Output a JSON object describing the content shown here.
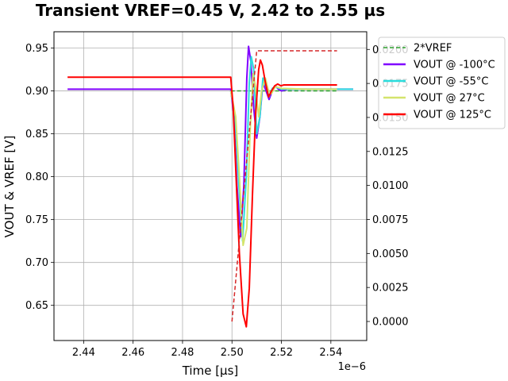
{
  "chart_data": {
    "type": "line",
    "title": "Transient VREF=0.45 V, 2.42 to 2.55 µs",
    "xlabel": "Time [µs]",
    "ylabel": "VOUT & VREF [V]",
    "x_offset_label": "1e−6",
    "xlim": [
      2.428,
      2.5545
    ],
    "ylim": [
      0.609,
      0.969
    ],
    "y2lim": [
      -0.0014,
      0.0213
    ],
    "grid": true,
    "legend_position": "top-right",
    "xticks": [
      "2.44",
      "2.46",
      "2.48",
      "2.50",
      "2.52",
      "2.54"
    ],
    "yticks": [
      "0.65",
      "0.70",
      "0.75",
      "0.80",
      "0.85",
      "0.90",
      "0.95"
    ],
    "y2ticks": [
      "0.0000",
      "0.0025",
      "0.0050",
      "0.0075",
      "0.0100",
      "0.0125",
      "0.0150",
      "0.0175",
      "0.0200"
    ],
    "vref_step": {
      "color": "#d62728",
      "x": [
        2.5,
        2.51,
        2.5425
      ],
      "y": [
        0.0,
        0.0199,
        0.0199
      ]
    },
    "series": [
      {
        "name": "2*VREF",
        "color": "#2ca02c",
        "dashed": true,
        "x": [
          2.4995,
          2.5025,
          2.51,
          2.52,
          2.53,
          2.5425
        ],
        "y": [
          0.9,
          0.9,
          0.9,
          0.9,
          0.9,
          0.9
        ]
      },
      {
        "name": "VOUT @ -100°C",
        "color": "#8000ff",
        "dashed": false,
        "x": [
          2.4335,
          2.45,
          2.47,
          2.49,
          2.4995,
          2.5008,
          2.502,
          2.5035,
          2.5048,
          2.506,
          2.5067,
          2.5076,
          2.5088,
          2.51,
          2.5113,
          2.5125,
          2.5138,
          2.515,
          2.5163,
          2.5175,
          2.5188,
          2.52,
          2.5213,
          2.5225,
          2.53,
          2.54,
          2.549
        ],
        "y": [
          0.902,
          0.902,
          0.902,
          0.902,
          0.902,
          0.87,
          0.79,
          0.73,
          0.79,
          0.915,
          0.952,
          0.935,
          0.88,
          0.845,
          0.87,
          0.91,
          0.9,
          0.89,
          0.9,
          0.906,
          0.902,
          0.9,
          0.901,
          0.902,
          0.902,
          0.902,
          0.902
        ]
      },
      {
        "name": "VOUT @ -55°C",
        "color": "#2adddd",
        "dashed": false,
        "x": [
          2.4995,
          2.5013,
          2.5028,
          2.5043,
          2.5058,
          2.507,
          2.5078,
          2.5088,
          2.51,
          2.5113,
          2.5125,
          2.5138,
          2.515,
          2.5163,
          2.5175,
          2.52,
          2.53,
          2.54,
          2.549
        ],
        "y": [
          0.9,
          0.87,
          0.79,
          0.725,
          0.8,
          0.91,
          0.94,
          0.925,
          0.85,
          0.87,
          0.915,
          0.905,
          0.893,
          0.903,
          0.905,
          0.902,
          0.902,
          0.902,
          0.902
        ]
      },
      {
        "name": "VOUT @ 27°C",
        "color": "#d4e46c",
        "dashed": false,
        "x": [
          2.4995,
          2.5015,
          2.503,
          2.5045,
          2.506,
          2.5073,
          2.5085,
          2.5095,
          2.5108,
          2.512,
          2.5135,
          2.5148,
          2.516,
          2.5175,
          2.52,
          2.53,
          2.54,
          2.5425
        ],
        "y": [
          0.9,
          0.87,
          0.8,
          0.72,
          0.74,
          0.85,
          0.92,
          0.905,
          0.87,
          0.9,
          0.915,
          0.9,
          0.897,
          0.905,
          0.903,
          0.902,
          0.902,
          0.902
        ]
      },
      {
        "name": "VOUT @ 125°C",
        "color": "#ff0000",
        "dashed": false,
        "x": [
          2.4335,
          2.45,
          2.47,
          2.49,
          2.4995,
          2.5005,
          2.5018,
          2.503,
          2.5045,
          2.5058,
          2.507,
          2.5083,
          2.5095,
          2.5108,
          2.5115,
          2.5123,
          2.5135,
          2.5148,
          2.516,
          2.5173,
          2.5185,
          2.5198,
          2.521,
          2.53,
          2.54,
          2.5425
        ],
        "y": [
          0.916,
          0.916,
          0.916,
          0.916,
          0.916,
          0.88,
          0.79,
          0.71,
          0.64,
          0.625,
          0.67,
          0.78,
          0.87,
          0.925,
          0.936,
          0.93,
          0.91,
          0.893,
          0.9,
          0.906,
          0.908,
          0.906,
          0.907,
          0.907,
          0.907,
          0.907
        ]
      }
    ]
  }
}
